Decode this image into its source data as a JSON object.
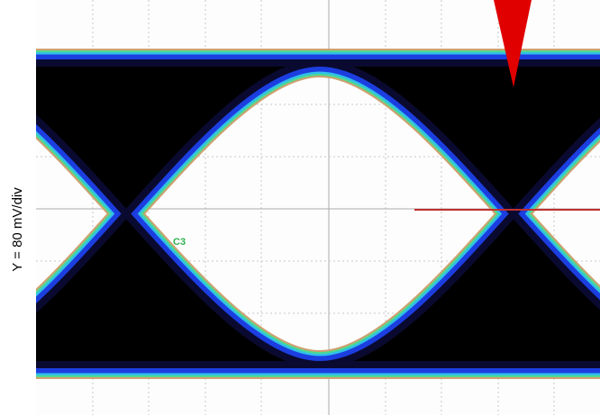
{
  "axis_label": "Y = 80 mV/div",
  "trace_label": "C3"
}
